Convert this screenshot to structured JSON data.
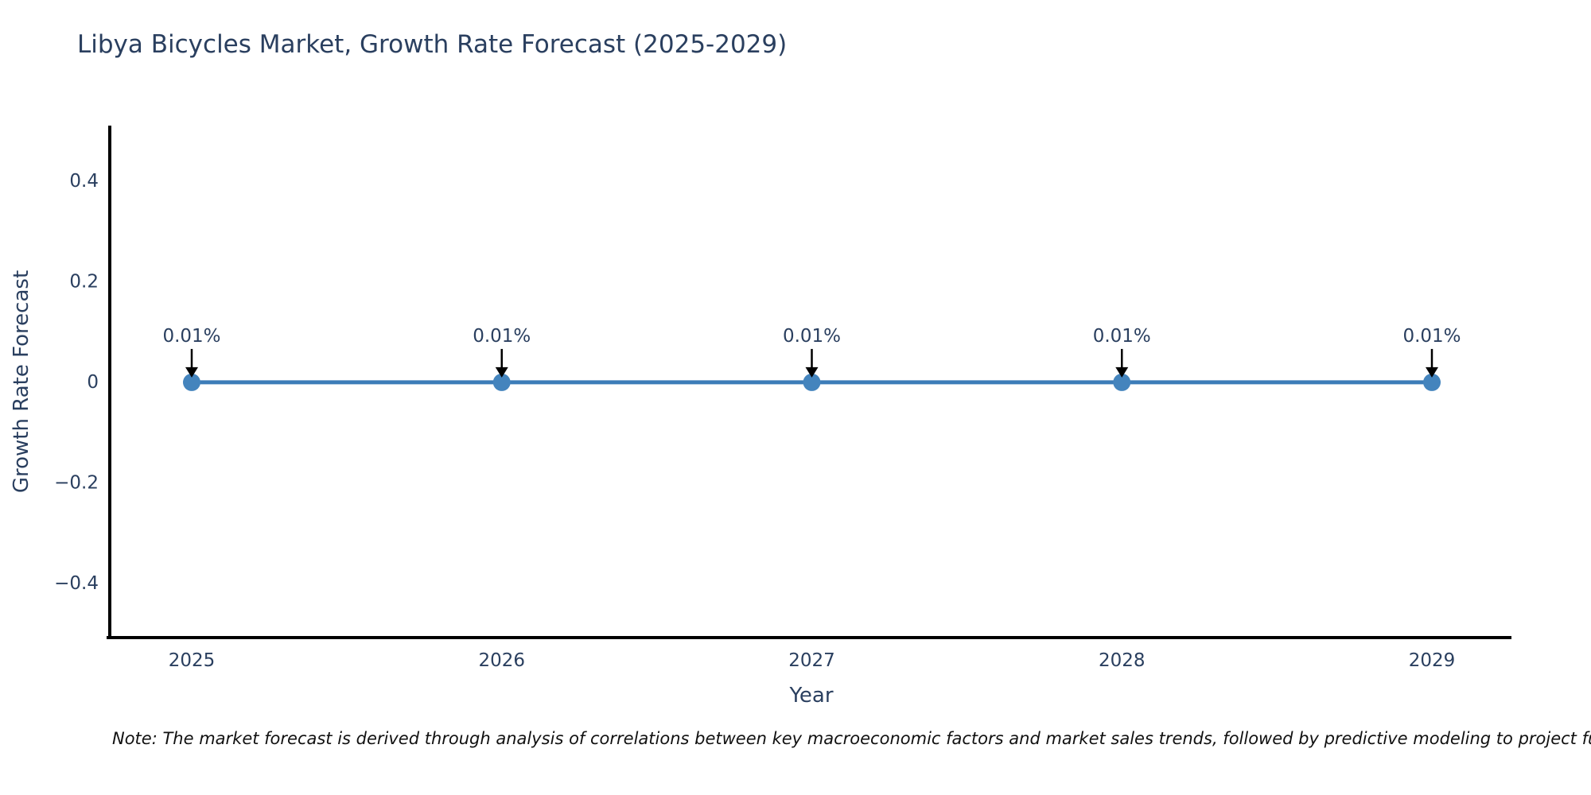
{
  "title": "Libya Bicycles Market, Growth Rate Forecast (2025-2029)",
  "note": "Note: The market forecast is derived through analysis of correlations between key macroeconomic factors and market sales trends, followed by predictive modeling to project future sal",
  "chart_data": {
    "type": "line",
    "title": "Libya Bicycles Market, Growth Rate Forecast (2025-2029)",
    "xlabel": "Year",
    "ylabel": "Growth Rate Forecast",
    "categories": [
      "2025",
      "2026",
      "2027",
      "2028",
      "2029"
    ],
    "series": [
      {
        "name": "Growth Rate Forecast",
        "values": [
          0.0001,
          0.0001,
          0.0001,
          0.0001,
          0.0001
        ]
      }
    ],
    "point_labels": [
      "0.01%",
      "0.01%",
      "0.01%",
      "0.01%",
      "0.01%"
    ],
    "yticks": [
      0.4,
      0.2,
      0,
      -0.2,
      -0.4
    ],
    "ytick_labels": [
      "0.4",
      "0.2",
      "0",
      "−0.2",
      "−0.4"
    ],
    "ylim": [
      -0.51,
      0.51
    ],
    "grid": false,
    "legend": "none",
    "markers": true,
    "annotation_arrows": true,
    "colors": {
      "line": "#3c7cb8",
      "marker": "#4484bd",
      "arrow": "#000000",
      "text": "#2a3f5f",
      "axis": "#000000",
      "note_text": "#111111"
    }
  }
}
